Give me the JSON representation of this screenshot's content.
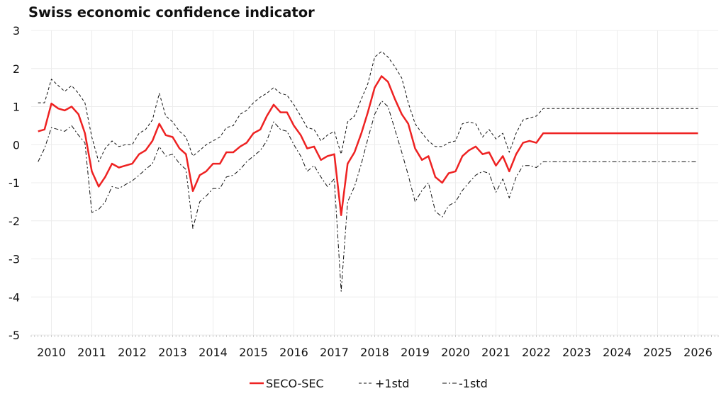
{
  "chart_data": {
    "type": "line",
    "title": "Swiss economic confidence indicator",
    "xlabel": "",
    "ylabel": "",
    "xlim": [
      2009.5,
      2026.5
    ],
    "ylim": [
      -5,
      3
    ],
    "yticks": [
      "3",
      "2",
      "1",
      "0",
      "-1",
      "-2",
      "-3",
      "-4",
      "-5"
    ],
    "xticks": [
      "2010",
      "2011",
      "2012",
      "2013",
      "2014",
      "2015",
      "2016",
      "2017",
      "2018",
      "2019",
      "2020",
      "2021",
      "2022",
      "2023",
      "2024",
      "2025",
      "2026"
    ],
    "grid": true,
    "legend_position": "bottom-center",
    "x": [
      2009.67,
      2009.83,
      2010.0,
      2010.17,
      2010.33,
      2010.5,
      2010.67,
      2010.83,
      2011.0,
      2011.17,
      2011.33,
      2011.5,
      2011.67,
      2011.83,
      2012.0,
      2012.17,
      2012.33,
      2012.5,
      2012.67,
      2012.83,
      2013.0,
      2013.17,
      2013.33,
      2013.5,
      2013.67,
      2013.83,
      2014.0,
      2014.17,
      2014.33,
      2014.5,
      2014.67,
      2014.83,
      2015.0,
      2015.17,
      2015.33,
      2015.5,
      2015.67,
      2015.83,
      2016.0,
      2016.17,
      2016.33,
      2016.5,
      2016.67,
      2016.83,
      2017.0,
      2017.17,
      2017.33,
      2017.5,
      2017.67,
      2017.83,
      2018.0,
      2018.17,
      2018.33,
      2018.5,
      2018.67,
      2018.83,
      2019.0,
      2019.17,
      2019.33,
      2019.5,
      2019.67,
      2019.83,
      2020.0,
      2020.17,
      2020.33,
      2020.5,
      2020.67,
      2020.83,
      2021.0,
      2021.17,
      2021.33,
      2021.5,
      2021.67,
      2021.83,
      2022.0,
      2022.17,
      2022.33,
      2022.5,
      2022.67,
      2022.83,
      2023.0,
      2023.17,
      2023.33,
      2023.5,
      2023.67,
      2023.83,
      2024.0,
      2024.17,
      2024.33,
      2024.5,
      2024.67,
      2024.83,
      2025.0,
      2025.17,
      2025.33,
      2025.5,
      2025.67,
      2025.83,
      2026.0
    ],
    "series": [
      {
        "name": "SECO-SEC",
        "color": "#ee2222",
        "style": "solid",
        "values": [
          0.35,
          0.4,
          1.08,
          0.95,
          0.9,
          1.0,
          0.8,
          0.3,
          -0.7,
          -1.1,
          -0.85,
          -0.5,
          -0.6,
          -0.55,
          -0.5,
          -0.25,
          -0.15,
          0.1,
          0.55,
          0.25,
          0.2,
          -0.1,
          -0.25,
          -1.22,
          -0.8,
          -0.7,
          -0.5,
          -0.5,
          -0.2,
          -0.2,
          -0.05,
          0.05,
          0.3,
          0.4,
          0.75,
          1.05,
          0.85,
          0.85,
          0.5,
          0.25,
          -0.1,
          -0.05,
          -0.4,
          -0.3,
          -0.25,
          -1.85,
          -0.5,
          -0.2,
          0.3,
          0.85,
          1.5,
          1.8,
          1.65,
          1.2,
          0.8,
          0.55,
          -0.1,
          -0.4,
          -0.3,
          -0.85,
          -1.0,
          -0.75,
          -0.7,
          -0.3,
          -0.15,
          -0.05,
          -0.25,
          -0.2,
          -0.55,
          -0.3,
          -0.7,
          -0.25,
          0.05,
          0.1,
          0.05,
          0.3,
          0.3,
          0.3,
          0.3,
          0.3,
          0.3,
          0.3,
          0.3,
          0.3,
          0.3,
          0.3,
          0.3,
          0.3,
          0.3,
          0.3,
          0.3,
          0.3,
          0.3,
          0.3,
          0.3,
          0.3,
          0.3,
          0.3,
          0.3
        ]
      },
      {
        "name": "+1std",
        "color": "#111111",
        "style": "dash",
        "values": [
          1.1,
          1.1,
          1.72,
          1.55,
          1.4,
          1.55,
          1.35,
          1.1,
          0.2,
          -0.45,
          -0.1,
          0.1,
          -0.05,
          0.0,
          0.0,
          0.3,
          0.4,
          0.65,
          1.35,
          0.75,
          0.6,
          0.35,
          0.2,
          -0.3,
          -0.15,
          0.0,
          0.1,
          0.2,
          0.45,
          0.5,
          0.8,
          0.9,
          1.1,
          1.25,
          1.35,
          1.5,
          1.35,
          1.3,
          1.05,
          0.75,
          0.45,
          0.4,
          0.1,
          0.25,
          0.35,
          -0.25,
          0.6,
          0.75,
          1.2,
          1.6,
          2.3,
          2.45,
          2.3,
          2.05,
          1.75,
          1.1,
          0.55,
          0.3,
          0.1,
          -0.05,
          -0.05,
          0.05,
          0.1,
          0.55,
          0.6,
          0.55,
          0.2,
          0.4,
          0.15,
          0.3,
          -0.2,
          0.3,
          0.65,
          0.7,
          0.75,
          0.95,
          0.95,
          0.95,
          0.95,
          0.95,
          0.95,
          0.95,
          0.95,
          0.95,
          0.95,
          0.95,
          0.95,
          0.95,
          0.95,
          0.95,
          0.95,
          0.95,
          0.95,
          0.95,
          0.95,
          0.95,
          0.95,
          0.95,
          0.95
        ]
      },
      {
        "name": "-1std",
        "color": "#111111",
        "style": "dashdot",
        "values": [
          -0.45,
          -0.1,
          0.45,
          0.4,
          0.35,
          0.5,
          0.25,
          0.05,
          -1.78,
          -1.7,
          -1.5,
          -1.1,
          -1.15,
          -1.05,
          -0.95,
          -0.8,
          -0.65,
          -0.5,
          -0.05,
          -0.3,
          -0.25,
          -0.5,
          -0.65,
          -2.2,
          -1.5,
          -1.35,
          -1.15,
          -1.15,
          -0.85,
          -0.8,
          -0.65,
          -0.45,
          -0.3,
          -0.15,
          0.1,
          0.6,
          0.4,
          0.35,
          0.0,
          -0.3,
          -0.7,
          -0.55,
          -0.85,
          -1.1,
          -0.9,
          -3.85,
          -1.5,
          -1.1,
          -0.5,
          0.15,
          0.8,
          1.15,
          1.0,
          0.4,
          -0.2,
          -0.8,
          -1.5,
          -1.2,
          -1.0,
          -1.75,
          -1.9,
          -1.6,
          -1.5,
          -1.2,
          -1.0,
          -0.8,
          -0.7,
          -0.75,
          -1.25,
          -0.9,
          -1.4,
          -0.85,
          -0.55,
          -0.55,
          -0.6,
          -0.45,
          -0.45,
          -0.45,
          -0.45,
          -0.45,
          -0.45,
          -0.45,
          -0.45,
          -0.45,
          -0.45,
          -0.45,
          -0.45,
          -0.45,
          -0.45,
          -0.45,
          -0.45,
          -0.45,
          -0.45,
          -0.45,
          -0.45,
          -0.45,
          -0.45,
          -0.45,
          -0.45
        ]
      }
    ]
  }
}
